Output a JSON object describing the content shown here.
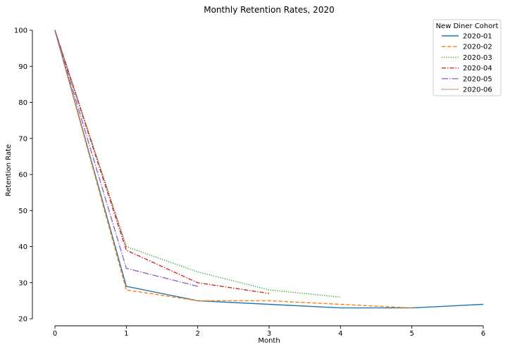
{
  "chart_data": {
    "type": "line",
    "title": "Monthly Retention Rates, 2020",
    "xlabel": "Month",
    "ylabel": "Retention Rate",
    "xlim": [
      0,
      6
    ],
    "ylim": [
      20,
      100
    ],
    "xticks": [
      0,
      1,
      2,
      3,
      4,
      5,
      6
    ],
    "yticks": [
      20,
      30,
      40,
      50,
      60,
      70,
      80,
      90,
      100
    ],
    "grid": false,
    "legend": {
      "title": "New Diner Cohort",
      "placement": "top-right"
    },
    "series": [
      {
        "name": "2020-01",
        "color": "#1f77b4",
        "dash": "solid",
        "x": [
          0,
          1,
          2,
          3,
          4,
          5,
          6
        ],
        "y": [
          100,
          29,
          25,
          24,
          23,
          23,
          24
        ]
      },
      {
        "name": "2020-02",
        "color": "#ff7f0e",
        "dash": "dashed",
        "x": [
          0,
          1,
          2,
          3,
          4,
          5
        ],
        "y": [
          100,
          28,
          25,
          25,
          24,
          23
        ]
      },
      {
        "name": "2020-03",
        "color": "#2ca02c",
        "dash": "dotted",
        "x": [
          0,
          1,
          2,
          3,
          4
        ],
        "y": [
          100,
          40,
          33,
          28,
          26
        ]
      },
      {
        "name": "2020-04",
        "color": "#d62728",
        "dash": "dashdot",
        "x": [
          0,
          1,
          2,
          3
        ],
        "y": [
          100,
          39,
          30,
          27
        ]
      },
      {
        "name": "2020-05",
        "color": "#9467bd",
        "dash": "longdashdot",
        "x": [
          0,
          1,
          2
        ],
        "y": [
          100,
          34,
          29
        ]
      },
      {
        "name": "2020-06",
        "color": "#8c564b",
        "dash": "densedot",
        "x": [
          0,
          1
        ],
        "y": [
          100,
          40
        ]
      }
    ]
  }
}
